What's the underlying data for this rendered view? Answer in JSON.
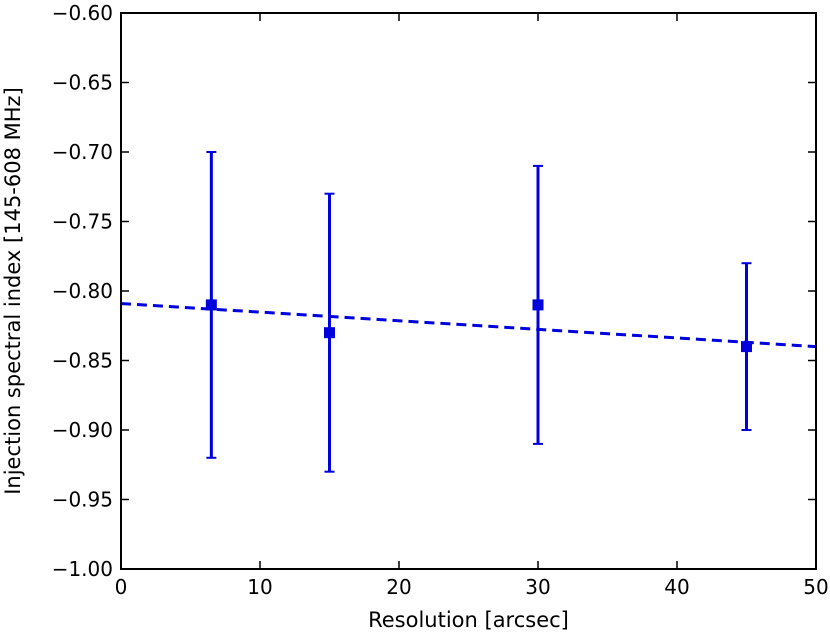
{
  "chart_data": {
    "type": "scatter",
    "title": "",
    "xlabel": "Resolution [arcsec]",
    "ylabel": "Injection spectral index [145-608 MHz]",
    "xlim": [
      0,
      50
    ],
    "ylim": [
      -1.0,
      -0.6
    ],
    "x_ticks": [
      0,
      10,
      20,
      30,
      40,
      50
    ],
    "x_tick_labels": [
      "0",
      "10",
      "20",
      "30",
      "40",
      "50"
    ],
    "y_ticks": [
      -0.6,
      -0.65,
      -0.7,
      -0.75,
      -0.8,
      -0.85,
      -0.9,
      -0.95,
      -1.0
    ],
    "y_tick_labels": [
      "−0.60",
      "−0.65",
      "−0.70",
      "−0.75",
      "−0.80",
      "−0.85",
      "−0.90",
      "−0.95",
      "−1.00"
    ],
    "grid": false,
    "color": "#0000dd",
    "series": [
      {
        "x": [
          6.5,
          15,
          30,
          45
        ],
        "y": [
          -0.81,
          -0.83,
          -0.81,
          -0.84
        ],
        "yerr_low": [
          -0.92,
          -0.93,
          -0.91,
          -0.9
        ],
        "yerr_high": [
          -0.7,
          -0.73,
          -0.71,
          -0.78
        ]
      }
    ],
    "fit_line": {
      "x": [
        0,
        50
      ],
      "y": [
        -0.809,
        -0.84
      ],
      "style": "dashed"
    }
  }
}
